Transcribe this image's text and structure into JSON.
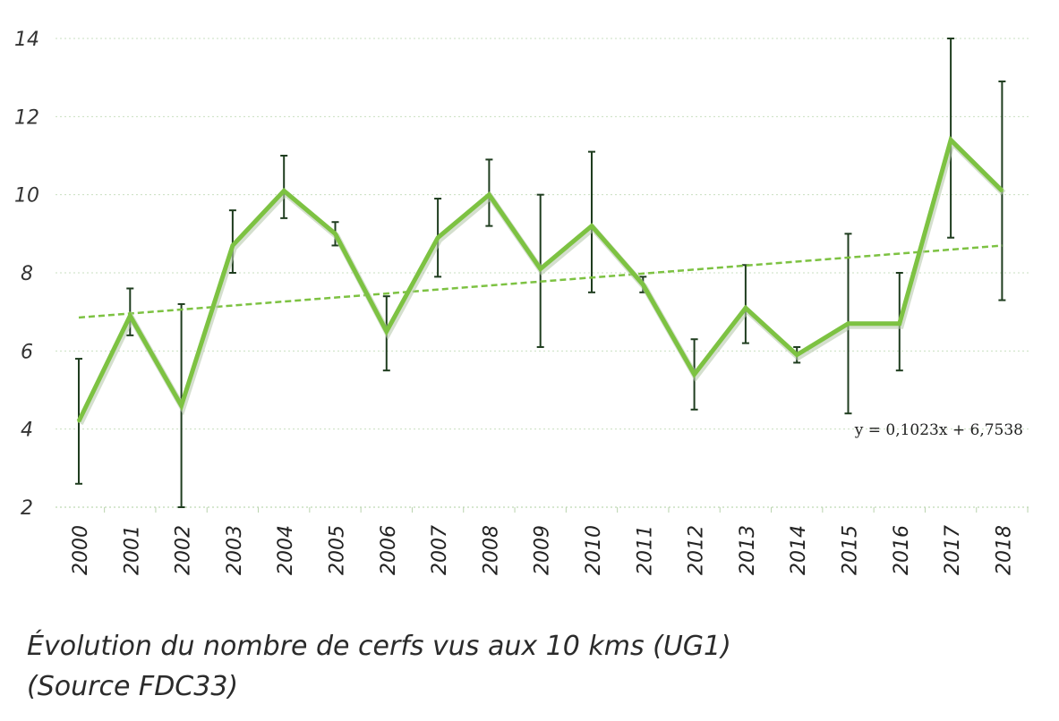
{
  "chart_data": {
    "type": "line",
    "x": [
      "2000",
      "2001",
      "2002",
      "2003",
      "2004",
      "2005",
      "2006",
      "2007",
      "2008",
      "2009",
      "2010",
      "2011",
      "2012",
      "2013",
      "2014",
      "2015",
      "2016",
      "2017",
      "2018"
    ],
    "series": [
      {
        "values": [
          4.2,
          6.9,
          4.6,
          8.7,
          10.1,
          9.0,
          6.5,
          8.9,
          10.0,
          8.1,
          9.2,
          7.7,
          5.4,
          7.1,
          5.9,
          6.7,
          6.7,
          11.4,
          10.1
        ],
        "error_low": [
          2.6,
          6.4,
          2.0,
          8.0,
          9.4,
          8.7,
          5.5,
          7.9,
          9.2,
          6.1,
          7.5,
          7.5,
          4.5,
          6.2,
          5.7,
          4.4,
          5.5,
          8.9,
          7.3
        ],
        "error_high": [
          5.8,
          7.6,
          7.2,
          9.6,
          11.0,
          9.3,
          7.4,
          9.9,
          10.9,
          10.0,
          11.1,
          7.9,
          6.3,
          8.2,
          6.1,
          9.0,
          8.0,
          14.0,
          12.9
        ],
        "color": "#7dc242"
      }
    ],
    "trendline": {
      "equation": "y = 0,1023x + 6,7538",
      "slope": 0.1023,
      "intercept": 6.7538,
      "color": "#7dc242",
      "style": "dashed"
    },
    "y_ticks": [
      "2",
      "4",
      "6",
      "8",
      "10",
      "12",
      "14"
    ],
    "ylim": [
      2,
      14
    ],
    "grid": true,
    "error_bar_color": "#1f3d1f",
    "caption_lines": [
      "Évolution du nombre de cerfs vus aux 10 kms (UG1)",
      "(Source FDC33)"
    ]
  }
}
